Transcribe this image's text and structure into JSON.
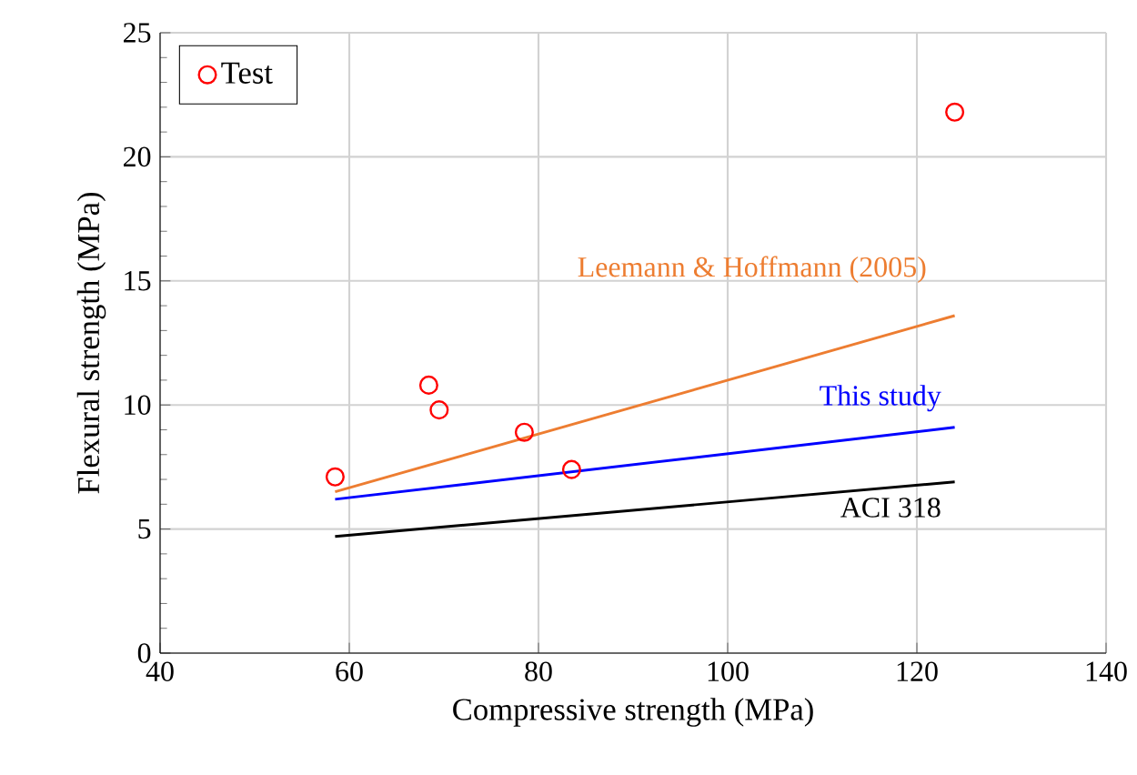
{
  "chart_data": {
    "type": "line",
    "xlabel": "Compressive strength (MPa)",
    "ylabel": "Flexural strength (MPa)",
    "xlim": [
      40,
      140
    ],
    "xticks": [
      40,
      60,
      80,
      100,
      120,
      140
    ],
    "ylim": [
      0,
      25
    ],
    "yticks": [
      0,
      5,
      10,
      15,
      20,
      25
    ],
    "grid": true,
    "legend": "top left",
    "series": [
      {
        "name": "Test",
        "type": "scatter",
        "marker": "circle",
        "color": "#ff0000",
        "x": [
          58.5,
          68.4,
          69.5,
          78.5,
          83.5,
          124
        ],
        "values": [
          7.1,
          10.8,
          9.8,
          8.9,
          7.4,
          21.8
        ]
      },
      {
        "color": "#ed7d31",
        "x": [
          58.5,
          124
        ],
        "values": [
          6.5,
          13.6
        ]
      },
      {
        "color": "#0000ff",
        "x": [
          58.5,
          124
        ],
        "values": [
          6.2,
          9.1
        ]
      },
      {
        "color": "#000000",
        "x": [
          58.5,
          124
        ],
        "values": [
          4.7,
          6.9
        ]
      }
    ],
    "annotations": [
      "Leemann & Hoffmann (2005)",
      "This study",
      "ACI 318"
    ]
  }
}
